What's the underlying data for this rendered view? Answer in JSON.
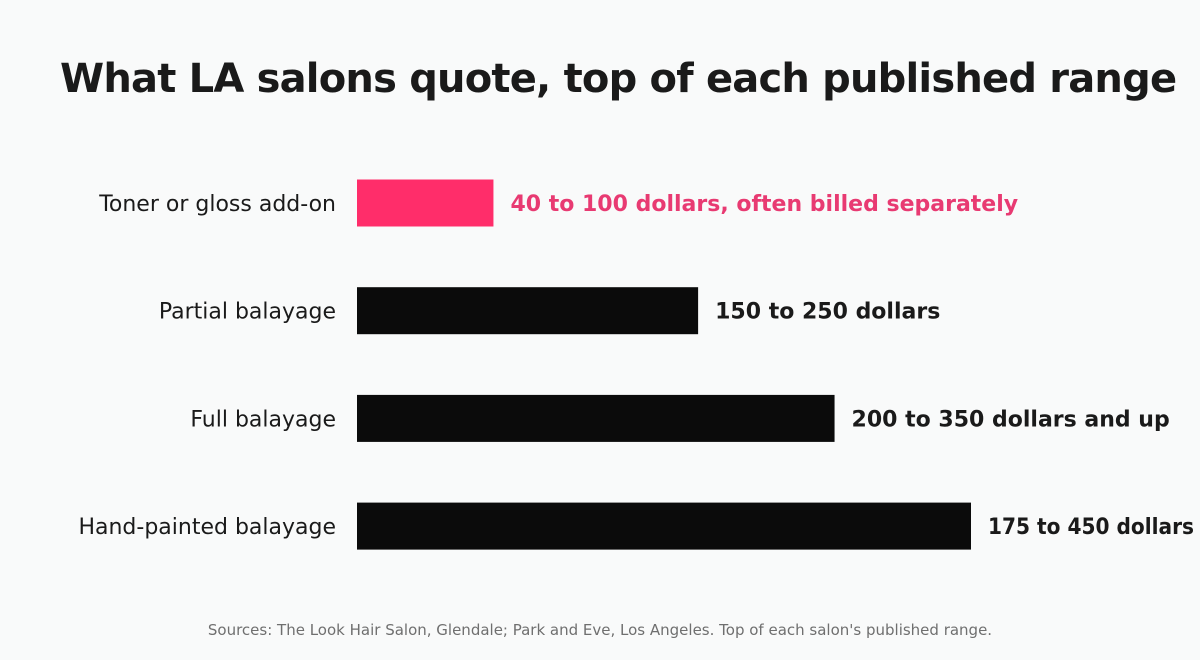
{
  "chart_data": {
    "type": "bar",
    "orientation": "horizontal",
    "title": "What LA salons quote, top of each published range",
    "categories": [
      "Toner or gloss add-on",
      "Partial balayage",
      "Full balayage",
      "Hand-painted balayage"
    ],
    "values": [
      100,
      250,
      350,
      450
    ],
    "value_labels": [
      "40 to 100 dollars, often billed separately",
      "150 to 250 dollars",
      "200 to 350 dollars and up",
      "175 to 450 dollars"
    ],
    "highlight_index": 0,
    "xlim": [
      0,
      450
    ],
    "grid": false,
    "legend": "none"
  },
  "colors": {
    "bar": "#0b0b0b",
    "highlight": "#ff2d6a",
    "label_text": "#1a1a1a",
    "highlight_text": "#e83a72"
  },
  "source": "Sources: The Look Hair Salon, Glendale; Park and Eve, Los Angeles. Top of each salon's published range."
}
